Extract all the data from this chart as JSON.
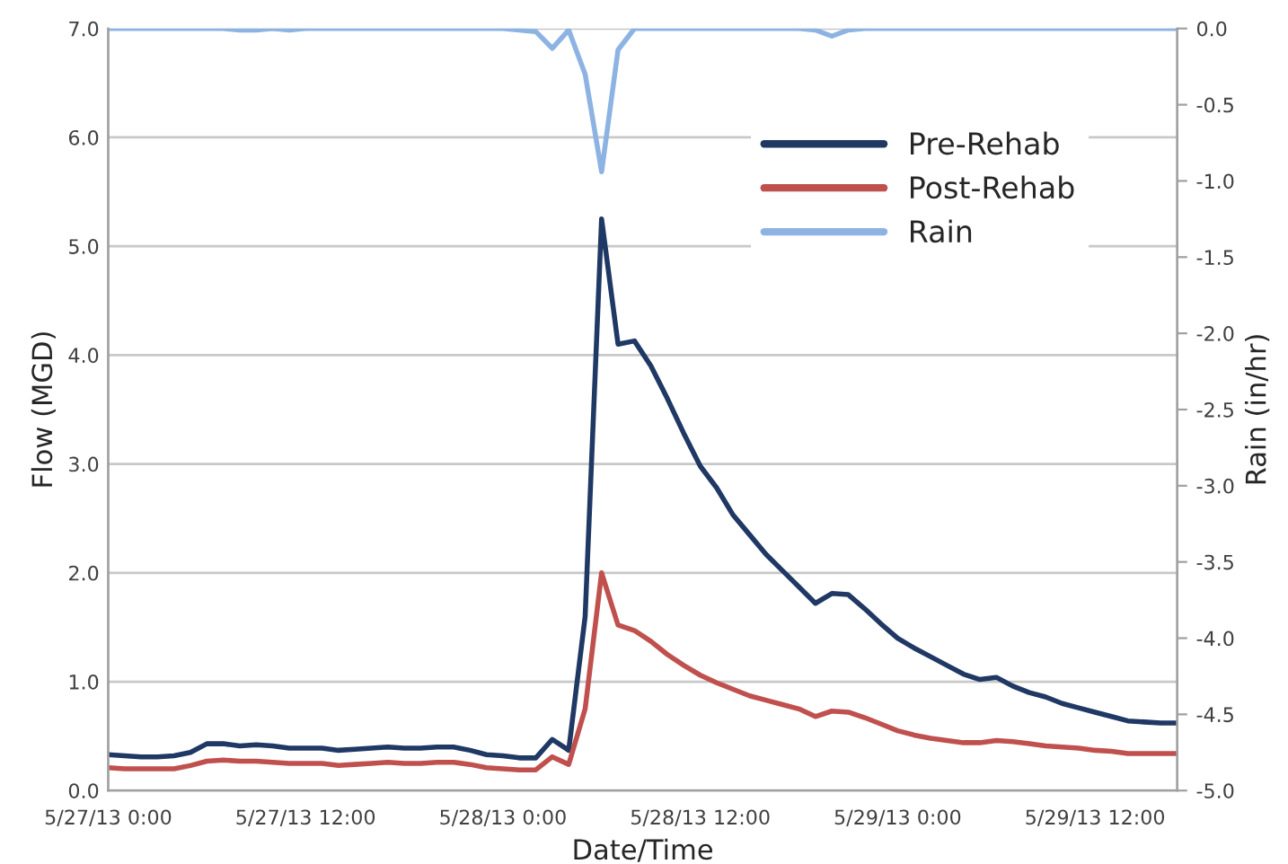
{
  "chart_data": {
    "type": "line",
    "xlabel": "Date/Time",
    "ylabel": "Flow (MGD)",
    "y2label": "Rain (in/hr)",
    "categories": [
      "5/27/13 0:00",
      null,
      null,
      null,
      null,
      null,
      null,
      null,
      null,
      null,
      null,
      null,
      "5/27/13 12:00",
      null,
      null,
      null,
      null,
      null,
      null,
      null,
      null,
      null,
      null,
      null,
      "5/28/13 0:00",
      null,
      null,
      null,
      null,
      null,
      null,
      null,
      null,
      null,
      null,
      null,
      "5/28/13 12:00",
      null,
      null,
      null,
      null,
      null,
      null,
      null,
      null,
      null,
      null,
      null,
      "5/29/13 0:00",
      null,
      null,
      null,
      null,
      null,
      null,
      null,
      null,
      null,
      null,
      null,
      "5/29/13 12:00",
      null,
      null,
      null,
      null,
      null
    ],
    "series": [
      {
        "name": "Pre-Rehab",
        "color": "#1f3864",
        "values": [
          0.33,
          0.32,
          0.31,
          0.31,
          0.32,
          0.35,
          0.43,
          0.43,
          0.41,
          0.42,
          0.41,
          0.39,
          0.39,
          0.39,
          0.37,
          0.38,
          0.39,
          0.4,
          0.39,
          0.39,
          0.4,
          0.4,
          0.37,
          0.33,
          0.32,
          0.3,
          0.3,
          0.47,
          0.37,
          1.6,
          5.25,
          4.1,
          4.13,
          3.9,
          3.6,
          3.28,
          2.98,
          2.78,
          2.53,
          2.35,
          2.17,
          2.02,
          1.87,
          1.72,
          1.81,
          1.8,
          1.67,
          1.53,
          1.4,
          1.31,
          1.23,
          1.15,
          1.07,
          1.02,
          1.04,
          0.96,
          0.9,
          0.86,
          0.8,
          0.76,
          0.72,
          0.68,
          0.64,
          0.63,
          0.62,
          0.62
        ]
      },
      {
        "name": "Post-Rehab",
        "color": "#c0504d",
        "values": [
          0.21,
          0.2,
          0.2,
          0.2,
          0.2,
          0.23,
          0.27,
          0.28,
          0.27,
          0.27,
          0.26,
          0.25,
          0.25,
          0.25,
          0.23,
          0.24,
          0.25,
          0.26,
          0.25,
          0.25,
          0.26,
          0.26,
          0.24,
          0.21,
          0.2,
          0.19,
          0.19,
          0.31,
          0.24,
          0.75,
          2.0,
          1.52,
          1.47,
          1.37,
          1.25,
          1.15,
          1.06,
          0.99,
          0.93,
          0.87,
          0.83,
          0.79,
          0.75,
          0.68,
          0.73,
          0.72,
          0.67,
          0.61,
          0.55,
          0.51,
          0.48,
          0.46,
          0.44,
          0.44,
          0.46,
          0.45,
          0.43,
          0.41,
          0.4,
          0.39,
          0.37,
          0.36,
          0.34,
          0.34,
          0.34,
          0.34
        ]
      },
      {
        "name": "Rain",
        "color": "#8db3e2",
        "axis": "y2",
        "values": [
          0,
          0,
          0,
          0,
          0,
          0,
          0,
          0,
          -0.01,
          -0.01,
          0,
          -0.01,
          0,
          0,
          0,
          0,
          0,
          0,
          0,
          0,
          0,
          0,
          0,
          0,
          0,
          -0.01,
          -0.02,
          -0.13,
          -0.01,
          -0.3,
          -0.94,
          -0.14,
          0,
          0,
          0,
          0,
          0,
          0,
          0,
          0,
          0,
          0,
          0,
          -0.01,
          -0.05,
          -0.01,
          0,
          0,
          0,
          0,
          0,
          0,
          0,
          0,
          0,
          0,
          0,
          0,
          0,
          0,
          0,
          0,
          0,
          0,
          0,
          0
        ]
      }
    ],
    "ylim": [
      0,
      7
    ],
    "yticks": [
      {
        "value": 0,
        "label": "0.0"
      },
      {
        "value": 1,
        "label": "1.0"
      },
      {
        "value": 2,
        "label": "2.0"
      },
      {
        "value": 3,
        "label": "3.0"
      },
      {
        "value": 4,
        "label": "4.0"
      },
      {
        "value": 5,
        "label": "5.0"
      },
      {
        "value": 6,
        "label": "6.0"
      },
      {
        "value": 7,
        "label": "7.0"
      }
    ],
    "y2lim": [
      -5,
      0
    ],
    "y2ticks": [
      {
        "value": 0,
        "label": "0.0"
      },
      {
        "value": -0.5,
        "label": "-0.5"
      },
      {
        "value": -1,
        "label": "-1.0"
      },
      {
        "value": -1.5,
        "label": "-1.5"
      },
      {
        "value": -2,
        "label": "-2.0"
      },
      {
        "value": -2.5,
        "label": "-2.5"
      },
      {
        "value": -3,
        "label": "-3.0"
      },
      {
        "value": -3.5,
        "label": "-3.5"
      },
      {
        "value": -4,
        "label": "-4.0"
      },
      {
        "value": -4.5,
        "label": "-4.5"
      },
      {
        "value": -5,
        "label": "-5.0"
      }
    ],
    "grid": "y",
    "legend": "top right",
    "marker": "none",
    "line_style": "solid"
  }
}
